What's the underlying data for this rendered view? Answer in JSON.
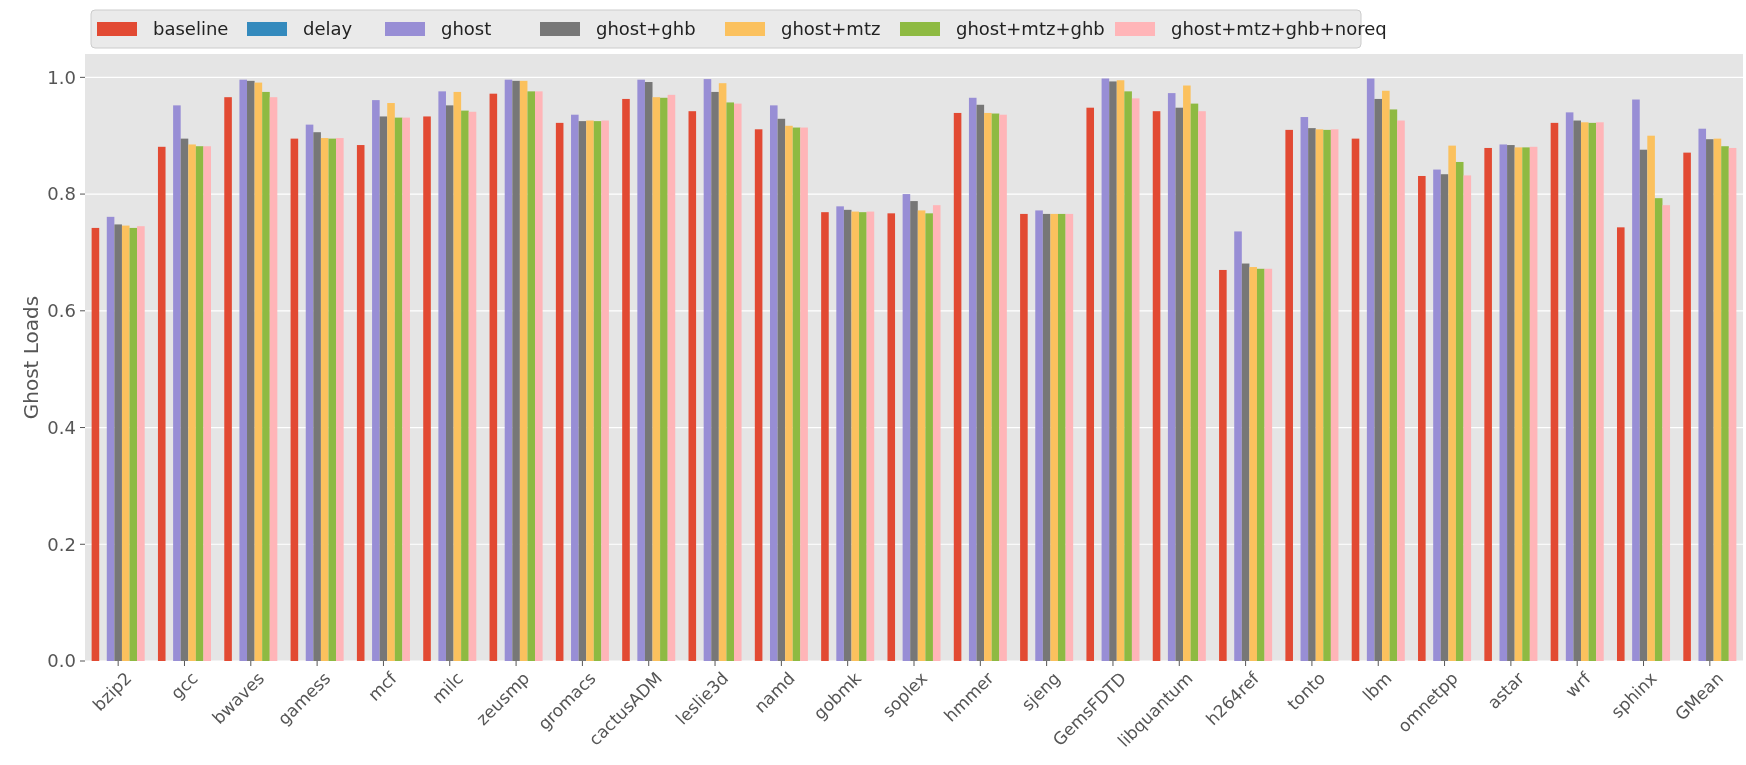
{
  "chart_data": {
    "type": "bar",
    "ylabel": "Ghost Loads",
    "legend": "top left",
    "grid": "y",
    "categories": [
      "bzip2",
      "gcc",
      "bwaves",
      "gamess",
      "mcf",
      "milc",
      "zeusmp",
      "gromacs",
      "cactusADM",
      "leslie3d",
      "namd",
      "gobmk",
      "soplex",
      "hmmer",
      "sjeng",
      "GemsFDTD",
      "libquantum",
      "h264ref",
      "tonto",
      "lbm",
      "omnetpp",
      "astar",
      "wrf",
      "sphinx",
      "GMean"
    ],
    "ylim": [
      0,
      1.04
    ],
    "yticks": [
      {
        "value": 0,
        "label": "0.0"
      },
      {
        "value": 0.2,
        "label": "0.2"
      },
      {
        "value": 0.4,
        "label": "0.4"
      },
      {
        "value": 0.6,
        "label": "0.6"
      },
      {
        "value": 0.8,
        "label": "0.8"
      },
      {
        "value": 1,
        "label": "1.0"
      }
    ],
    "series": [
      {
        "name": "baseline",
        "color": "#e24a33",
        "values": [
          0.742,
          0.881,
          0.966,
          0.895,
          0.884,
          0.933,
          0.972,
          0.922,
          0.963,
          0.942,
          0.911,
          0.769,
          0.767,
          0.939,
          0.766,
          0.948,
          0.942,
          0.67,
          0.91,
          0.895,
          0.831,
          0.879,
          0.922,
          0.743,
          0.871
        ]
      },
      {
        "name": "delay",
        "color": "#348abd",
        "values": [
          null,
          null,
          null,
          null,
          null,
          null,
          null,
          null,
          null,
          null,
          null,
          null,
          null,
          null,
          null,
          null,
          null,
          null,
          null,
          null,
          null,
          null,
          null,
          null,
          null
        ]
      },
      {
        "name": "ghost",
        "color": "#988ed5",
        "values": [
          0.761,
          0.952,
          0.996,
          0.919,
          0.961,
          0.976,
          0.996,
          0.936,
          0.996,
          0.997,
          0.952,
          0.779,
          0.8,
          0.965,
          0.772,
          0.998,
          0.973,
          0.736,
          0.932,
          0.998,
          0.842,
          0.885,
          0.94,
          0.962,
          0.912
        ]
      },
      {
        "name": "ghost+ghb",
        "color": "#777777",
        "values": [
          0.748,
          0.895,
          0.994,
          0.906,
          0.933,
          0.952,
          0.994,
          0.925,
          0.992,
          0.975,
          0.929,
          0.773,
          0.788,
          0.953,
          0.766,
          0.993,
          0.948,
          0.681,
          0.913,
          0.963,
          0.834,
          0.884,
          0.926,
          0.876,
          0.894
        ]
      },
      {
        "name": "ghost+mtz",
        "color": "#fbc15e",
        "values": [
          0.746,
          0.885,
          0.991,
          0.896,
          0.956,
          0.975,
          0.994,
          0.926,
          0.966,
          0.99,
          0.917,
          0.77,
          0.772,
          0.939,
          0.766,
          0.995,
          0.986,
          0.675,
          0.911,
          0.977,
          0.883,
          0.88,
          0.923,
          0.9,
          0.895
        ]
      },
      {
        "name": "ghost+mtz+ghb",
        "color": "#8eba42",
        "values": [
          0.742,
          0.882,
          0.975,
          0.895,
          0.931,
          0.943,
          0.976,
          0.925,
          0.965,
          0.957,
          0.914,
          0.769,
          0.767,
          0.938,
          0.766,
          0.976,
          0.955,
          0.672,
          0.91,
          0.945,
          0.855,
          0.88,
          0.922,
          0.793,
          0.882
        ]
      },
      {
        "name": "ghost+mtz+ghb+noreq",
        "color": "#ffb5b8",
        "values": [
          0.745,
          0.882,
          0.966,
          0.896,
          0.931,
          0.941,
          0.976,
          0.926,
          0.97,
          0.955,
          0.914,
          0.77,
          0.781,
          0.936,
          0.766,
          0.964,
          0.942,
          0.672,
          0.911,
          0.926,
          0.832,
          0.881,
          0.923,
          0.781,
          0.879
        ]
      }
    ]
  }
}
